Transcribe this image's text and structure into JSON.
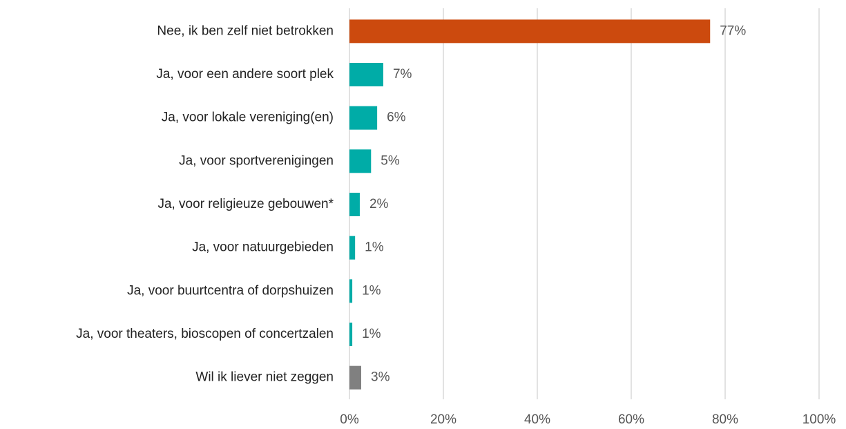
{
  "chart_data": {
    "type": "barh",
    "categories": [
      "Nee, ik ben zelf niet betrokken",
      "Ja, voor een andere soort plek",
      "Ja, voor lokale vereniging(en)",
      "Ja, voor sportverenigingen",
      "Ja, voor religieuze gebouwen*",
      "Ja, voor natuurgebieden",
      "Ja, voor buurtcentra of dorpshuizen",
      "Ja, voor theaters, bioscopen of concertzalen",
      "Wil ik liever niet zeggen"
    ],
    "values": [
      76.8,
      7.2,
      5.9,
      4.6,
      2.2,
      1.2,
      0.6,
      0.6,
      2.5
    ],
    "value_labels": [
      "77%",
      "7%",
      "6%",
      "5%",
      "2%",
      "1%",
      "1%",
      "1%",
      "3%"
    ],
    "colors": [
      "#cc4a0e",
      "#00aca7",
      "#00aca7",
      "#00aca7",
      "#00aca7",
      "#00aca7",
      "#00aca7",
      "#00aca7",
      "#808080"
    ],
    "xlim": [
      0,
      100
    ],
    "xticks": [
      {
        "value": 0,
        "label": "0%"
      },
      {
        "value": 20,
        "label": "20%"
      },
      {
        "value": 40,
        "label": "40%"
      },
      {
        "value": 60,
        "label": "60%"
      },
      {
        "value": 80,
        "label": "80%"
      },
      {
        "value": 100,
        "label": "100%"
      }
    ],
    "grid": true
  }
}
